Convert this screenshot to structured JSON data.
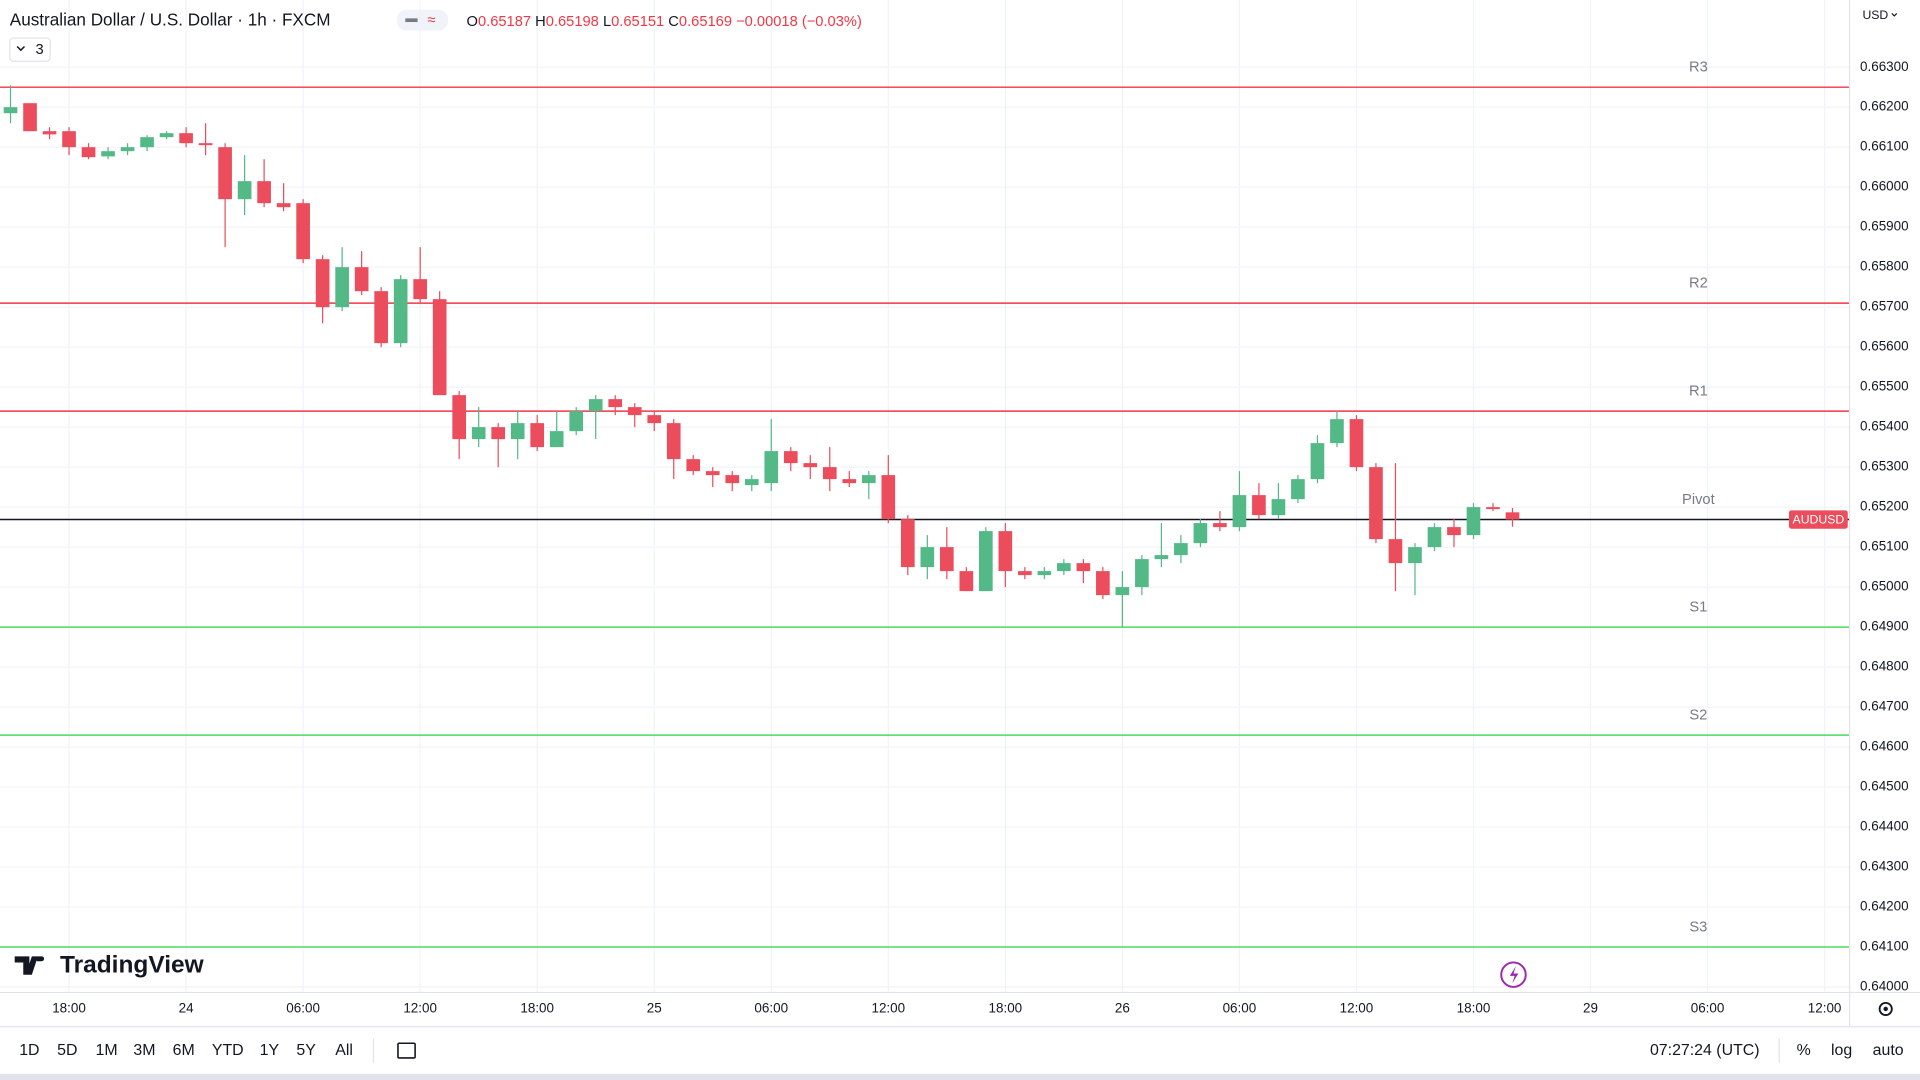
{
  "header": {
    "title": "Australian Dollar / U.S. Dollar · 1h · FXCM",
    "ohlc_labels": [
      "O",
      "H",
      "L",
      "C"
    ],
    "change": "−0.00018 (−0.03%)",
    "indicator_count": "3"
  },
  "currency": "USD",
  "logo": "TradingView",
  "toolbar": {
    "ranges": [
      "1D",
      "5D",
      "1M",
      "3M",
      "6M",
      "YTD",
      "1Y",
      "5Y",
      "All"
    ],
    "clock": "07:27:24 (UTC)",
    "options": [
      "%",
      "log",
      "auto"
    ]
  },
  "chart_data": {
    "type": "candlestick",
    "symbol": "AUDUSD",
    "up_color": "#53b987",
    "down_color": "#eb4d5c",
    "open": [
      0.66185,
      0.6621,
      0.6614,
      0.6614,
      0.661,
      0.66077,
      0.6609,
      0.661,
      0.66125,
      0.66135,
      0.6611,
      0.661,
      0.6597,
      0.66015,
      0.6596,
      0.6596,
      0.6582,
      0.657,
      0.658,
      0.6574,
      0.6561,
      0.6577,
      0.6572,
      0.6548,
      0.6537,
      0.654,
      0.6537,
      0.6541,
      0.6535,
      0.6539,
      0.6544,
      0.6547,
      0.6545,
      0.6543,
      0.6541,
      0.6532,
      0.6529,
      0.6528,
      0.65255,
      0.6526,
      0.6534,
      0.6531,
      0.653,
      0.6527,
      0.6526,
      0.6528,
      0.6517,
      0.6505,
      0.651,
      0.6504,
      0.6499,
      0.6514,
      0.6504,
      0.6503,
      0.6504,
      0.6506,
      0.6504,
      0.6498,
      0.65,
      0.6507,
      0.6508,
      0.6511,
      0.6516,
      0.6515,
      0.6523,
      0.6518,
      0.6522,
      0.6527,
      0.6536,
      0.6542,
      0.653,
      0.6512,
      0.6506,
      0.651,
      0.6515,
      0.6513,
      0.652,
      0.65187
    ],
    "high": [
      0.66255,
      0.6621,
      0.6615,
      0.6615,
      0.6611,
      0.661,
      0.6611,
      0.6613,
      0.6614,
      0.6615,
      0.6616,
      0.6611,
      0.6608,
      0.6607,
      0.6601,
      0.6597,
      0.6583,
      0.6585,
      0.6584,
      0.6575,
      0.6578,
      0.6585,
      0.6574,
      0.6549,
      0.6545,
      0.6541,
      0.6544,
      0.6543,
      0.6544,
      0.6545,
      0.6548,
      0.6548,
      0.6546,
      0.6544,
      0.6542,
      0.6533,
      0.653,
      0.6529,
      0.6528,
      0.6542,
      0.6535,
      0.6533,
      0.6535,
      0.6529,
      0.6529,
      0.6533,
      0.6518,
      0.6513,
      0.6515,
      0.6505,
      0.6515,
      0.6516,
      0.6505,
      0.6505,
      0.6507,
      0.6507,
      0.6505,
      0.6504,
      0.6508,
      0.6516,
      0.6513,
      0.6517,
      0.6519,
      0.6529,
      0.6526,
      0.6526,
      0.6528,
      0.6538,
      0.6544,
      0.6543,
      0.6531,
      0.6531,
      0.6511,
      0.6516,
      0.6517,
      0.6521,
      0.6521,
      0.65198
    ],
    "low": [
      0.6616,
      0.6614,
      0.6612,
      0.6608,
      0.6607,
      0.6607,
      0.6608,
      0.6609,
      0.6612,
      0.661,
      0.6608,
      0.6585,
      0.6593,
      0.6595,
      0.6594,
      0.6581,
      0.6566,
      0.6569,
      0.6573,
      0.656,
      0.656,
      0.6571,
      0.6548,
      0.6532,
      0.6535,
      0.653,
      0.6532,
      0.6534,
      0.6535,
      0.6538,
      0.6537,
      0.6543,
      0.654,
      0.6539,
      0.6527,
      0.6528,
      0.6525,
      0.6524,
      0.6524,
      0.6524,
      0.6529,
      0.6527,
      0.6524,
      0.6525,
      0.6522,
      0.6516,
      0.6503,
      0.6502,
      0.6502,
      0.6499,
      0.6499,
      0.65,
      0.6502,
      0.6502,
      0.6503,
      0.6501,
      0.6497,
      0.649,
      0.6498,
      0.6505,
      0.6506,
      0.651,
      0.6514,
      0.6514,
      0.6517,
      0.6517,
      0.6521,
      0.6526,
      0.6535,
      0.6529,
      0.6511,
      0.6499,
      0.6498,
      0.6509,
      0.651,
      0.6512,
      0.6519,
      0.65151
    ],
    "close": [
      0.662,
      0.6614,
      0.66132,
      0.661,
      0.66075,
      0.6609,
      0.661,
      0.66125,
      0.66135,
      0.6611,
      0.66105,
      0.6597,
      0.66015,
      0.6596,
      0.6595,
      0.6582,
      0.657,
      0.658,
      0.6574,
      0.6561,
      0.6577,
      0.6572,
      0.6548,
      0.6537,
      0.654,
      0.6537,
      0.6541,
      0.6535,
      0.6539,
      0.6544,
      0.6547,
      0.6545,
      0.6543,
      0.6541,
      0.6532,
      0.6529,
      0.6528,
      0.6526,
      0.6527,
      0.6534,
      0.6531,
      0.653,
      0.6527,
      0.6526,
      0.6528,
      0.6517,
      0.6505,
      0.651,
      0.6504,
      0.6499,
      0.6514,
      0.6504,
      0.6503,
      0.6504,
      0.6506,
      0.6504,
      0.6498,
      0.65,
      0.6507,
      0.6508,
      0.6511,
      0.6516,
      0.6515,
      0.6523,
      0.6518,
      0.6522,
      0.6527,
      0.6536,
      0.6542,
      0.653,
      0.6512,
      0.6506,
      0.651,
      0.6515,
      0.6513,
      0.652,
      0.65195,
      0.65169
    ],
    "xlim": [
      -0.54,
      94.25
    ],
    "xticks": [
      {
        "value": 3,
        "label": "18:00"
      },
      {
        "value": 9,
        "label": "24"
      },
      {
        "value": 15,
        "label": "06:00"
      },
      {
        "value": 21,
        "label": "12:00"
      },
      {
        "value": 27,
        "label": "18:00"
      },
      {
        "value": 33,
        "label": "25"
      },
      {
        "value": 39,
        "label": "06:00"
      },
      {
        "value": 45,
        "label": "12:00"
      },
      {
        "value": 51,
        "label": "18:00"
      },
      {
        "value": 57,
        "label": "26"
      },
      {
        "value": 63,
        "label": "06:00"
      },
      {
        "value": 69,
        "label": "12:00"
      },
      {
        "value": 75,
        "label": "18:00"
      },
      {
        "value": 81,
        "label": "29"
      },
      {
        "value": 87,
        "label": "06:00"
      },
      {
        "value": 93,
        "label": "12:00"
      }
    ],
    "ylim": [
      0.63988,
      0.66468
    ],
    "yticks": [
      {
        "value": 0.663,
        "label": "0.66300"
      },
      {
        "value": 0.662,
        "label": "0.66200"
      },
      {
        "value": 0.661,
        "label": "0.66100"
      },
      {
        "value": 0.66,
        "label": "0.66000"
      },
      {
        "value": 0.659,
        "label": "0.65900"
      },
      {
        "value": 0.658,
        "label": "0.65800"
      },
      {
        "value": 0.657,
        "label": "0.65700"
      },
      {
        "value": 0.656,
        "label": "0.65600"
      },
      {
        "value": 0.655,
        "label": "0.65500"
      },
      {
        "value": 0.654,
        "label": "0.65400"
      },
      {
        "value": 0.653,
        "label": "0.65300"
      },
      {
        "value": 0.652,
        "label": "0.65200"
      },
      {
        "value": 0.651,
        "label": "0.65100"
      },
      {
        "value": 0.65,
        "label": "0.65000"
      },
      {
        "value": 0.649,
        "label": "0.64900"
      },
      {
        "value": 0.648,
        "label": "0.64800"
      },
      {
        "value": 0.647,
        "label": "0.64700"
      },
      {
        "value": 0.646,
        "label": "0.64600"
      },
      {
        "value": 0.645,
        "label": "0.64500"
      },
      {
        "value": 0.644,
        "label": "0.64400"
      },
      {
        "value": 0.643,
        "label": "0.64300"
      },
      {
        "value": 0.642,
        "label": "0.64200"
      },
      {
        "value": 0.641,
        "label": "0.64100"
      },
      {
        "value": 0.64,
        "label": "0.64000"
      }
    ],
    "grid": true,
    "levels": [
      {
        "name": "R3",
        "value": 0.6625,
        "color": "#f23645"
      },
      {
        "name": "R2",
        "value": 0.6571,
        "color": "#f23645"
      },
      {
        "name": "R1",
        "value": 0.6544,
        "color": "#f23645"
      },
      {
        "name": "Pivot",
        "value": 0.65169,
        "color": "#131722"
      },
      {
        "name": "S1",
        "value": 0.649,
        "color": "#4cdb5a"
      },
      {
        "name": "S2",
        "value": 0.6463,
        "color": "#4cdb5a"
      },
      {
        "name": "S3",
        "value": 0.641,
        "color": "#4cdb5a"
      }
    ]
  }
}
